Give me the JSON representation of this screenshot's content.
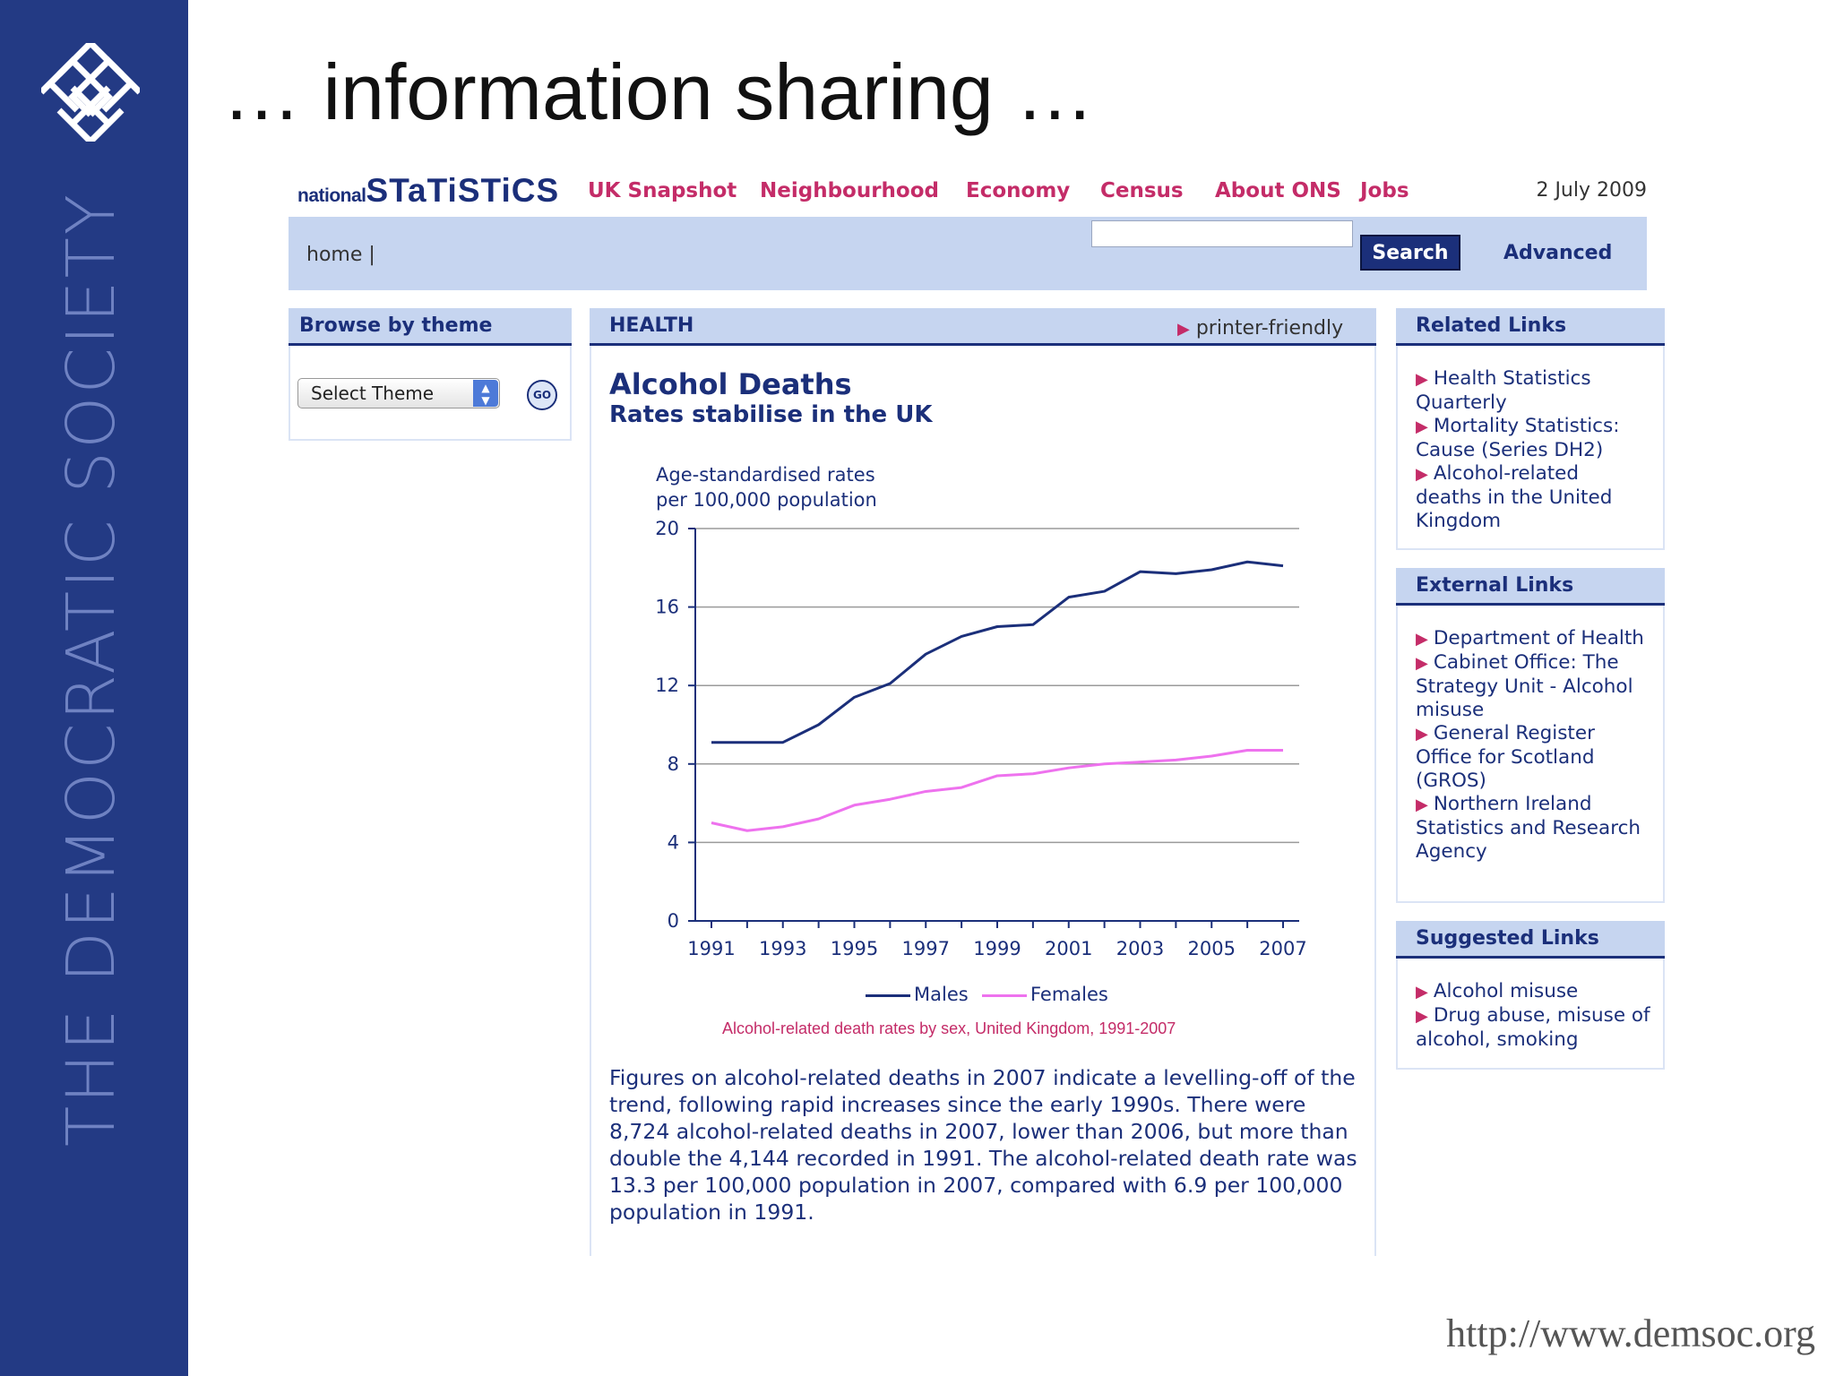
{
  "slide": {
    "title": "… information sharing …",
    "vertical_text": "THE DEMOCRATIC SOCIETY",
    "footer_url": "http://www.demsoc.org",
    "colors": {
      "sidebar": "#233a84"
    }
  },
  "site": {
    "brand_small": "national",
    "brand_big": "STaTiSTiCS",
    "nav": [
      "UK Snapshot",
      "Neighbourhood",
      "Economy",
      "Census",
      "About ONS",
      "Jobs"
    ],
    "date": "2 July 2009",
    "home_link": "home |",
    "search": {
      "placeholder": "",
      "button_label": "Search",
      "advanced_label": "Advanced"
    },
    "colors": {
      "brand": "#1b2f7a",
      "accent": "#c42c68",
      "header_bg": "#c6d5f0"
    }
  },
  "browse": {
    "header": "Browse by theme",
    "select_value": "Select Theme",
    "go_label": "GO"
  },
  "article": {
    "section": "HEALTH",
    "printer_link": "printer-friendly",
    "title": "Alcohol Deaths",
    "subtitle": "Rates stabilise in the UK",
    "chart_ylabel_1": "Age-standardised rates",
    "chart_ylabel_2": "per 100,000 population",
    "chart_caption": "Alcohol-related death rates by sex, United Kingdom, 1991-2007",
    "body": "Figures on alcohol-related deaths in 2007 indicate a levelling-off of the trend, following rapid increases since the early 1990s. There were 8,724 alcohol-related deaths in 2007, lower than 2006, but more than double the 4,144 recorded in 1991. The alcohol-related death rate was 13.3 per 100,000 population in 2007, compared with 6.9 per 100,000 population in 1991."
  },
  "chart_data": {
    "type": "line",
    "x": [
      1991,
      1992,
      1993,
      1994,
      1995,
      1996,
      1997,
      1998,
      1999,
      2000,
      2001,
      2002,
      2003,
      2004,
      2005,
      2006,
      2007
    ],
    "x_ticks": [
      "1991",
      "1993",
      "1995",
      "1997",
      "1999",
      "2001",
      "2003",
      "2005",
      "2007"
    ],
    "y_ticks": [
      "0",
      "4",
      "8",
      "12",
      "16",
      "20"
    ],
    "ylim": [
      0,
      20
    ],
    "grid": true,
    "legend_position": "bottom",
    "series": [
      {
        "name": "Males",
        "color": "#1b2f7a",
        "values": [
          9.1,
          9.1,
          9.1,
          10.0,
          11.4,
          12.1,
          13.6,
          14.5,
          15.0,
          15.1,
          16.5,
          16.8,
          17.8,
          17.7,
          17.9,
          18.3,
          18.1
        ]
      },
      {
        "name": "Females",
        "color": "#ee72ee",
        "values": [
          5.0,
          4.6,
          4.8,
          5.2,
          5.9,
          6.2,
          6.6,
          6.8,
          7.4,
          7.5,
          7.8,
          8.0,
          8.1,
          8.2,
          8.4,
          8.7,
          8.7
        ]
      }
    ],
    "ylabel": "Age-standardised rates per 100,000 population",
    "caption": "Alcohol-related death rates by sex, United Kingdom, 1991-2007"
  },
  "related": {
    "header": "Related Links",
    "items": [
      "Health Statistics Quarterly",
      "Mortality Statistics: Cause (Series DH2)",
      "Alcohol-related deaths in the United Kingdom"
    ]
  },
  "external": {
    "header": "External Links",
    "items": [
      "Department of Health",
      "Cabinet Office: The Strategy Unit - Alcohol misuse",
      "General Register Office for Scotland (GROS)",
      "Northern Ireland Statistics and Research Agency"
    ]
  },
  "suggested": {
    "header": "Suggested Links",
    "items": [
      "Alcohol misuse",
      "Drug abuse, misuse of alcohol, smoking"
    ]
  }
}
